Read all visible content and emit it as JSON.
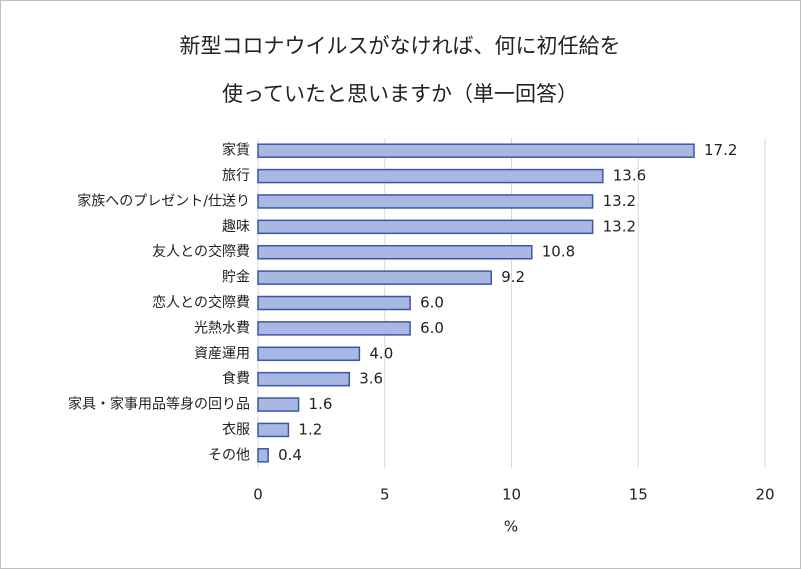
{
  "chart_data": {
    "type": "bar",
    "orientation": "horizontal",
    "title": [
      "新型コロナウイルスがなければ、何に初任給を",
      "使っていたと思いますか（単一回答）"
    ],
    "x_label": "%",
    "categories": [
      "家賃",
      "旅行",
      "家族へのプレゼント/仕送り",
      "趣味",
      "友人との交際費",
      "貯金",
      "恋人との交際費",
      "光熱水費",
      "資産運用",
      "食費",
      "家具・家事用品等身の回り品",
      "衣服",
      "その他"
    ],
    "values": [
      17.2,
      13.6,
      13.2,
      13.2,
      10.8,
      9.2,
      6.0,
      6.0,
      4.0,
      3.6,
      1.6,
      1.2,
      0.4
    ],
    "value_labels": [
      "17.2",
      "13.6",
      "13.2",
      "13.2",
      "10.8",
      "9.2",
      "6.0",
      "6.0",
      "4.0",
      "3.6",
      "1.6",
      "1.2",
      "0.4"
    ],
    "color": "#a9b8e2",
    "edge_color": "#3b57a8",
    "xlim": [
      0,
      20
    ],
    "xticks": [
      0,
      5,
      10,
      15,
      20
    ],
    "grid": true
  }
}
